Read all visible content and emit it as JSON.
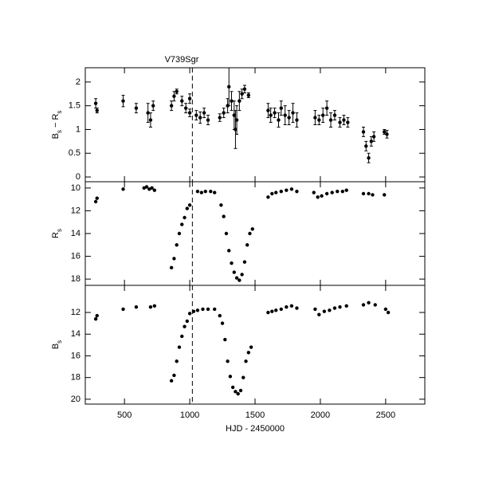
{
  "chart_data": [
    {
      "type": "scatter",
      "title": "V739Sgr",
      "ylabel": [
        {
          "text": "B",
          "sub": false
        },
        {
          "text": "s",
          "sub": true
        },
        {
          "text": " − R",
          "sub": false
        },
        {
          "text": "s",
          "sub": true
        }
      ],
      "xlim": [
        200,
        2800
      ],
      "ylim": [
        -0.1,
        2.3
      ],
      "yticks": [
        0,
        0.5,
        1,
        1.5,
        2
      ],
      "marker_x": 1020,
      "color": "#000000",
      "x": [
        280,
        290,
        490,
        590,
        680,
        700,
        720,
        860,
        880,
        900,
        940,
        970,
        1000,
        1000,
        1050,
        1080,
        1110,
        1140,
        1230,
        1260,
        1290,
        1300,
        1320,
        1340,
        1350,
        1360,
        1380,
        1400,
        1420,
        1450,
        1600,
        1620,
        1650,
        1680,
        1700,
        1730,
        1760,
        1790,
        1820,
        1960,
        1990,
        2020,
        2050,
        2080,
        2110,
        2150,
        2180,
        2210,
        2330,
        2350,
        2370,
        2390,
        2410,
        2490,
        2510
      ],
      "values": [
        1.55,
        1.4,
        1.6,
        1.45,
        1.35,
        1.2,
        1.5,
        1.5,
        1.7,
        1.8,
        1.6,
        1.45,
        1.65,
        1.35,
        1.3,
        1.25,
        1.35,
        1.2,
        1.25,
        1.35,
        1.5,
        1.9,
        1.6,
        1.3,
        1.0,
        1.2,
        1.6,
        1.75,
        1.85,
        1.72,
        1.4,
        1.3,
        1.35,
        1.2,
        1.45,
        1.3,
        1.25,
        1.35,
        1.2,
        1.25,
        1.2,
        1.3,
        1.45,
        1.2,
        1.3,
        1.15,
        1.2,
        1.15,
        0.95,
        0.65,
        0.4,
        0.75,
        0.85,
        0.95,
        0.9
      ],
      "errors": [
        0.1,
        0.05,
        0.12,
        0.1,
        0.2,
        0.15,
        0.1,
        0.1,
        0.1,
        0.05,
        0.1,
        0.1,
        0.1,
        0.08,
        0.1,
        0.12,
        0.1,
        0.1,
        0.08,
        0.1,
        0.15,
        0.4,
        0.2,
        0.3,
        0.4,
        0.3,
        0.2,
        0.1,
        0.08,
        0.05,
        0.15,
        0.15,
        0.1,
        0.15,
        0.15,
        0.2,
        0.15,
        0.2,
        0.15,
        0.15,
        0.1,
        0.15,
        0.15,
        0.15,
        0.1,
        0.1,
        0.1,
        0.1,
        0.1,
        0.1,
        0.1,
        0.1,
        0.1,
        0.05,
        0.08
      ]
    },
    {
      "type": "scatter",
      "ylabel": [
        {
          "text": "R",
          "sub": false
        },
        {
          "text": "s",
          "sub": true
        }
      ],
      "xlim": [
        200,
        2800
      ],
      "ylim": [
        18.55,
        9.45
      ],
      "yticks": [
        10,
        12,
        14,
        16,
        18
      ],
      "marker_x": 1020,
      "color": "#000000",
      "x": [
        280,
        290,
        490,
        650,
        670,
        690,
        710,
        730,
        860,
        880,
        900,
        920,
        940,
        960,
        980,
        1000,
        1060,
        1090,
        1120,
        1160,
        1190,
        1240,
        1260,
        1280,
        1300,
        1320,
        1340,
        1360,
        1380,
        1400,
        1420,
        1440,
        1460,
        1480,
        1600,
        1630,
        1660,
        1700,
        1740,
        1780,
        1820,
        1950,
        1980,
        2010,
        2050,
        2090,
        2130,
        2170,
        2200,
        2330,
        2370,
        2400,
        2490
      ],
      "values": [
        11.2,
        10.9,
        10.1,
        10.0,
        9.9,
        10.1,
        10.0,
        10.2,
        17.0,
        16.2,
        15.0,
        14.0,
        13.2,
        12.6,
        11.8,
        11.5,
        10.3,
        10.4,
        10.3,
        10.3,
        10.4,
        11.5,
        12.5,
        14.0,
        15.5,
        16.6,
        17.4,
        17.9,
        18.1,
        17.6,
        16.5,
        15.0,
        14.0,
        13.6,
        10.8,
        10.5,
        10.4,
        10.3,
        10.2,
        10.1,
        10.3,
        10.4,
        10.8,
        10.7,
        10.5,
        10.4,
        10.3,
        10.3,
        10.2,
        10.5,
        10.5,
        10.6,
        10.6
      ]
    },
    {
      "type": "scatter",
      "ylabel": [
        {
          "text": "B",
          "sub": false
        },
        {
          "text": "s",
          "sub": true
        }
      ],
      "xlabel": "HJD - 2450000",
      "xlim": [
        200,
        2800
      ],
      "xticks": [
        500,
        1000,
        1500,
        2000,
        2500
      ],
      "ylim": [
        20.45,
        9.5
      ],
      "yticks": [
        12,
        14,
        16,
        18,
        20
      ],
      "marker_x": 1020,
      "color": "#000000",
      "x": [
        280,
        290,
        490,
        590,
        700,
        730,
        860,
        880,
        900,
        920,
        940,
        960,
        980,
        1000,
        1030,
        1060,
        1100,
        1140,
        1190,
        1230,
        1250,
        1270,
        1290,
        1310,
        1330,
        1350,
        1370,
        1390,
        1410,
        1430,
        1450,
        1470,
        1600,
        1630,
        1660,
        1700,
        1740,
        1780,
        1820,
        1960,
        1990,
        2030,
        2070,
        2110,
        2150,
        2200,
        2330,
        2370,
        2420,
        2500,
        2520
      ],
      "values": [
        12.6,
        12.3,
        11.7,
        11.5,
        11.5,
        11.4,
        18.3,
        17.8,
        16.5,
        15.2,
        14.2,
        13.3,
        12.8,
        12.1,
        11.9,
        11.8,
        11.7,
        11.7,
        11.7,
        12.3,
        13.0,
        14.5,
        16.5,
        17.9,
        18.9,
        19.3,
        19.5,
        19.2,
        18.0,
        16.5,
        15.7,
        15.2,
        12.0,
        11.9,
        11.8,
        11.7,
        11.5,
        11.4,
        11.6,
        11.7,
        12.2,
        11.9,
        11.8,
        11.6,
        11.5,
        11.4,
        11.3,
        11.1,
        11.3,
        11.7,
        12.0
      ]
    }
  ]
}
